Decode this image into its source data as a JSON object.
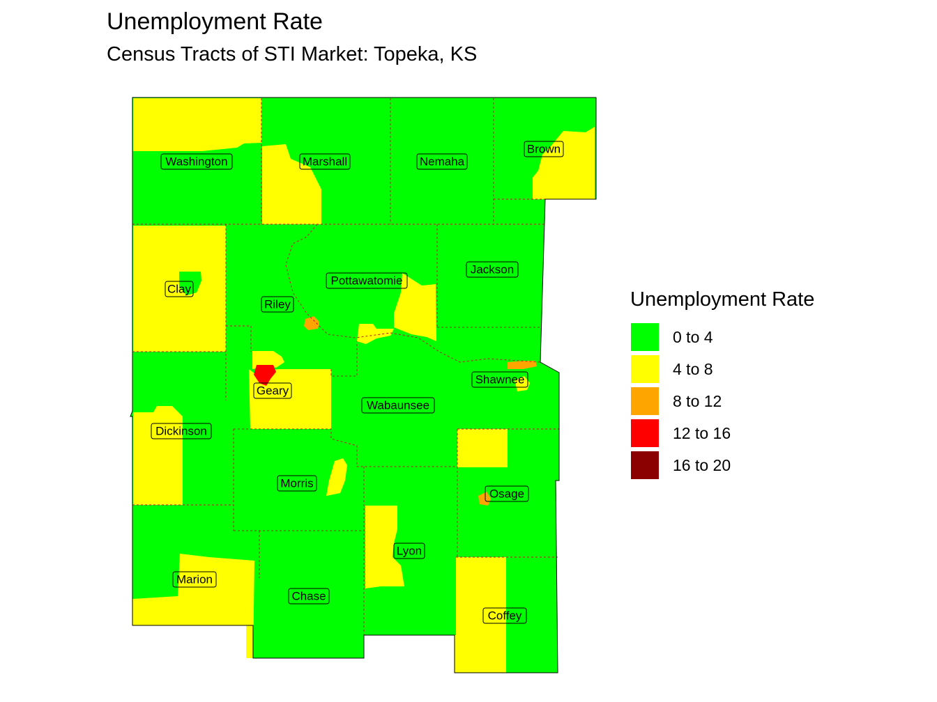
{
  "title": "Unemployment Rate",
  "subtitle": "Census Tracts of STI Market: Topeka, KS",
  "legend": {
    "title": "Unemployment Rate",
    "items": [
      {
        "label": "0 to 4",
        "color": "#00ff00"
      },
      {
        "label": "4 to 8",
        "color": "#ffff00"
      },
      {
        "label": "8 to 12",
        "color": "#ffa500"
      },
      {
        "label": "12 to 16",
        "color": "#ff0000"
      },
      {
        "label": "16 to 20",
        "color": "#8b0000"
      }
    ]
  },
  "counties": [
    {
      "name": "Washington"
    },
    {
      "name": "Marshall"
    },
    {
      "name": "Nemaha"
    },
    {
      "name": "Brown"
    },
    {
      "name": "Clay"
    },
    {
      "name": "Riley"
    },
    {
      "name": "Pottawatomie"
    },
    {
      "name": "Jackson"
    },
    {
      "name": "Geary"
    },
    {
      "name": "Wabaunsee"
    },
    {
      "name": "Shawnee"
    },
    {
      "name": "Dickinson"
    },
    {
      "name": "Morris"
    },
    {
      "name": "Osage"
    },
    {
      "name": "Lyon"
    },
    {
      "name": "Marion"
    },
    {
      "name": "Chase"
    },
    {
      "name": "Coffey"
    }
  ],
  "colors": {
    "green": "#00ff00",
    "yellow": "#ffff00",
    "orange": "#ffa500",
    "red": "#ff0000",
    "dark_red": "#8b0000",
    "county_border": "#b22222"
  }
}
